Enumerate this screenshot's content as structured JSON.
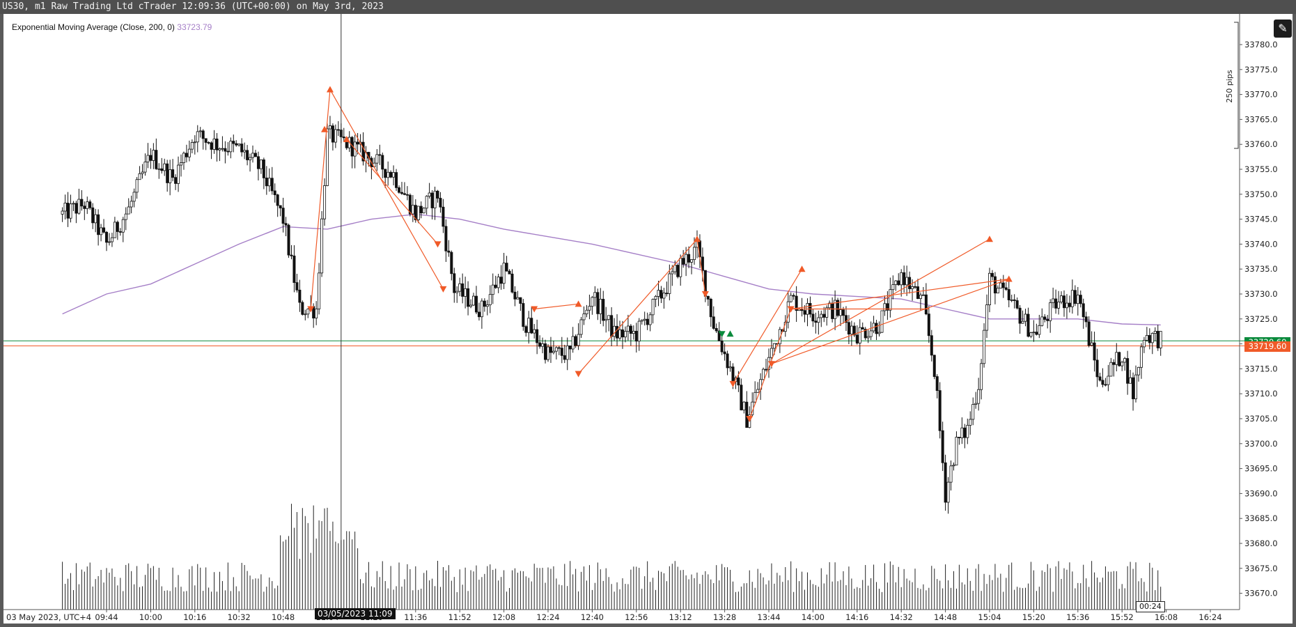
{
  "window": {
    "title": "US30, m1 Raw Trading Ltd cTrader 12:09:36 (UTC+00:00) on May 3rd, 2023"
  },
  "indicator_legend": {
    "label": "Exponential Moving Average (Close, 200, 0)",
    "value": "33723.79"
  },
  "ruler": {
    "label": "250 pips"
  },
  "price_tags": {
    "green": "33720.60",
    "orange": "33719.60"
  },
  "crosshair_label": "03/05/2023 11:09",
  "countdown": "00:24",
  "colors": {
    "candle": "#111111",
    "ema": "#a57fc7",
    "trade_line": "#f05a28",
    "green_line": "#0a8a3c",
    "orange_line": "#f05a28",
    "volume": "#222222"
  },
  "chart_data": {
    "type": "candlestick",
    "title": "US30, m1",
    "ylim": [
      33666,
      33788
    ],
    "y_ticks": [
      "33780.0",
      "33775.0",
      "33770.0",
      "33765.0",
      "33760.0",
      "33755.0",
      "33750.0",
      "33745.0",
      "33740.0",
      "33735.0",
      "33730.0",
      "33725.0",
      "33720.0",
      "33715.0",
      "33710.0",
      "33705.0",
      "33700.0",
      "33695.0",
      "33690.0",
      "33685.0",
      "33680.0",
      "33675.0",
      "33670.0"
    ],
    "x_ticks": [
      "03 May 2023, UTC+4",
      "09:44",
      "10:00",
      "10:16",
      "10:32",
      "10:48",
      "11:04",
      "11:20",
      "11:36",
      "11:52",
      "12:08",
      "12:24",
      "12:40",
      "12:56",
      "13:12",
      "13:28",
      "13:44",
      "14:00",
      "14:16",
      "14:32",
      "14:48",
      "15:04",
      "15:20",
      "15:36",
      "15:52",
      "16:08",
      "16:24"
    ],
    "price_keypoints": [
      {
        "time": "09:28",
        "price": 33746
      },
      {
        "time": "09:36",
        "price": 33748
      },
      {
        "time": "09:44",
        "price": 33740
      },
      {
        "time": "09:52",
        "price": 33747
      },
      {
        "time": "10:00",
        "price": 33758
      },
      {
        "time": "10:08",
        "price": 33753
      },
      {
        "time": "10:16",
        "price": 33762
      },
      {
        "time": "10:24",
        "price": 33760
      },
      {
        "time": "10:32",
        "price": 33759
      },
      {
        "time": "10:40",
        "price": 33755
      },
      {
        "time": "10:48",
        "price": 33745
      },
      {
        "time": "10:54",
        "price": 33727
      },
      {
        "time": "11:00",
        "price": 33727
      },
      {
        "time": "11:04",
        "price": 33762
      },
      {
        "time": "11:12",
        "price": 33760
      },
      {
        "time": "11:20",
        "price": 33757
      },
      {
        "time": "11:28",
        "price": 33754
      },
      {
        "time": "11:36",
        "price": 33746
      },
      {
        "time": "11:44",
        "price": 33750
      },
      {
        "time": "11:50",
        "price": 33731
      },
      {
        "time": "12:00",
        "price": 33727
      },
      {
        "time": "12:08",
        "price": 33735
      },
      {
        "time": "12:16",
        "price": 33724
      },
      {
        "time": "12:24",
        "price": 33718
      },
      {
        "time": "12:32",
        "price": 33718
      },
      {
        "time": "12:40",
        "price": 33730
      },
      {
        "time": "12:48",
        "price": 33722
      },
      {
        "time": "12:56",
        "price": 33722
      },
      {
        "time": "13:04",
        "price": 33729
      },
      {
        "time": "13:12",
        "price": 33736
      },
      {
        "time": "13:18",
        "price": 33739
      },
      {
        "time": "13:24",
        "price": 33724
      },
      {
        "time": "13:30",
        "price": 33715
      },
      {
        "time": "13:36",
        "price": 33705
      },
      {
        "time": "13:44",
        "price": 33717
      },
      {
        "time": "13:52",
        "price": 33729
      },
      {
        "time": "14:00",
        "price": 33726
      },
      {
        "time": "14:08",
        "price": 33727
      },
      {
        "time": "14:16",
        "price": 33722
      },
      {
        "time": "14:24",
        "price": 33724
      },
      {
        "time": "14:32",
        "price": 33734
      },
      {
        "time": "14:40",
        "price": 33728
      },
      {
        "time": "14:44",
        "price": 33715
      },
      {
        "time": "14:48",
        "price": 33690
      },
      {
        "time": "14:52",
        "price": 33700
      },
      {
        "time": "14:56",
        "price": 33703
      },
      {
        "time": "15:00",
        "price": 33712
      },
      {
        "time": "15:04",
        "price": 33733
      },
      {
        "time": "15:12",
        "price": 33728
      },
      {
        "time": "15:20",
        "price": 33722
      },
      {
        "time": "15:28",
        "price": 33728
      },
      {
        "time": "15:36",
        "price": 33730
      },
      {
        "time": "15:44",
        "price": 33712
      },
      {
        "time": "15:52",
        "price": 33718
      },
      {
        "time": "15:56",
        "price": 33710
      },
      {
        "time": "16:00",
        "price": 33722
      },
      {
        "time": "16:06",
        "price": 33721
      }
    ],
    "ema_200": [
      {
        "time": "09:28",
        "value": 33726
      },
      {
        "time": "09:44",
        "value": 33730
      },
      {
        "time": "10:00",
        "value": 33732
      },
      {
        "time": "10:16",
        "value": 33736
      },
      {
        "time": "10:32",
        "value": 33740
      },
      {
        "time": "10:48",
        "value": 33743.5
      },
      {
        "time": "11:04",
        "value": 33743
      },
      {
        "time": "11:20",
        "value": 33745
      },
      {
        "time": "11:36",
        "value": 33746
      },
      {
        "time": "11:52",
        "value": 33745
      },
      {
        "time": "12:08",
        "value": 33743
      },
      {
        "time": "12:24",
        "value": 33741.5
      },
      {
        "time": "12:40",
        "value": 33740
      },
      {
        "time": "12:56",
        "value": 33738
      },
      {
        "time": "13:12",
        "value": 33736
      },
      {
        "time": "13:28",
        "value": 33733.5
      },
      {
        "time": "13:44",
        "value": 33731
      },
      {
        "time": "14:00",
        "value": 33730
      },
      {
        "time": "14:16",
        "value": 33729.5
      },
      {
        "time": "14:32",
        "value": 33729
      },
      {
        "time": "14:48",
        "value": 33727
      },
      {
        "time": "15:04",
        "value": 33725
      },
      {
        "time": "15:20",
        "value": 33725
      },
      {
        "time": "15:36",
        "value": 33725
      },
      {
        "time": "15:52",
        "value": 33724
      },
      {
        "time": "16:06",
        "value": 33723.8
      }
    ],
    "trade_markers": [
      {
        "time": "10:58",
        "price": 33727,
        "dir": "down"
      },
      {
        "time": "11:03",
        "price": 33763,
        "dir": "up"
      },
      {
        "time": "11:05",
        "price": 33771,
        "dir": "up"
      },
      {
        "time": "11:11",
        "price": 33761,
        "dir": "up"
      },
      {
        "time": "11:44",
        "price": 33740,
        "dir": "down"
      },
      {
        "time": "11:46",
        "price": 33731,
        "dir": "down"
      },
      {
        "time": "12:19",
        "price": 33727,
        "dir": "down"
      },
      {
        "time": "12:35",
        "price": 33728,
        "dir": "up"
      },
      {
        "time": "12:35",
        "price": 33714,
        "dir": "down"
      },
      {
        "time": "13:18",
        "price": 33741,
        "dir": "up"
      },
      {
        "time": "13:21",
        "price": 33730,
        "dir": "down"
      },
      {
        "time": "13:27",
        "price": 33722,
        "dir": "down"
      },
      {
        "time": "13:30",
        "price": 33722,
        "dir": "up"
      },
      {
        "time": "13:31",
        "price": 33712,
        "dir": "down"
      },
      {
        "time": "13:37",
        "price": 33705,
        "dir": "down"
      },
      {
        "time": "13:45",
        "price": 33716,
        "dir": "down"
      },
      {
        "time": "13:52",
        "price": 33727,
        "dir": "down"
      },
      {
        "time": "13:56",
        "price": 33735,
        "dir": "up"
      },
      {
        "time": "15:04",
        "price": 33741,
        "dir": "up"
      },
      {
        "time": "15:11",
        "price": 33733,
        "dir": "up"
      }
    ],
    "trade_lines": [
      [
        "10:58",
        33727,
        "11:05",
        33771
      ],
      [
        "11:05",
        33771,
        "11:46",
        33731
      ],
      [
        "11:11",
        33761,
        "11:44",
        33740
      ],
      [
        "12:19",
        33727,
        "12:35",
        33728
      ],
      [
        "12:35",
        33714,
        "13:18",
        33741
      ],
      [
        "13:18",
        33741,
        "13:21",
        33730
      ],
      [
        "13:31",
        33712,
        "13:56",
        33735
      ],
      [
        "13:37",
        33705,
        "13:52",
        33727
      ],
      [
        "13:45",
        33716,
        "15:04",
        33741
      ],
      [
        "13:45",
        33716,
        "15:11",
        33733
      ],
      [
        "13:52",
        33727,
        "15:11",
        33733
      ],
      [
        "13:52",
        33727,
        "14:42",
        33727
      ]
    ],
    "horizontal_lines": [
      {
        "price": 33720.6,
        "color": "green"
      },
      {
        "price": 33719.6,
        "color": "orange"
      }
    ],
    "crosshair_time": "11:09",
    "volume_spike_time": "10:53"
  }
}
